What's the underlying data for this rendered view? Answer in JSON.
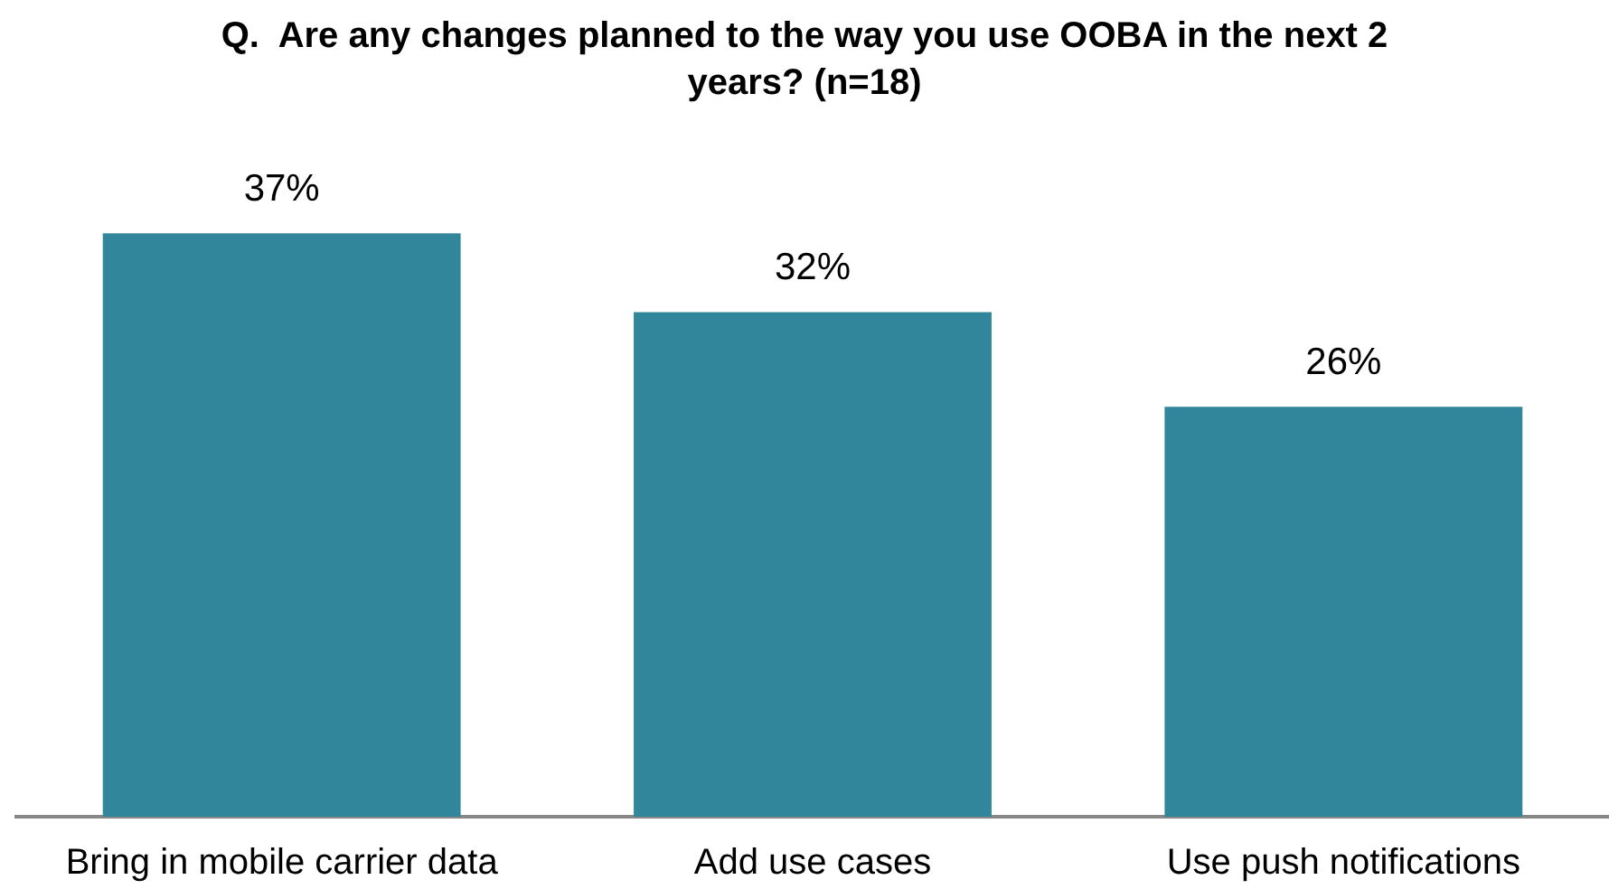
{
  "chart_data": {
    "type": "bar",
    "title": "Q.  Are any changes planned to the way you use OOBA in the next 2 years? (n=18)",
    "categories": [
      "Bring in mobile carrier data",
      "Add use cases",
      "Use push notifications"
    ],
    "values": [
      37,
      32,
      26
    ],
    "color": "#31869b",
    "value_labels": [
      "37%",
      "32%",
      "26%"
    ]
  }
}
